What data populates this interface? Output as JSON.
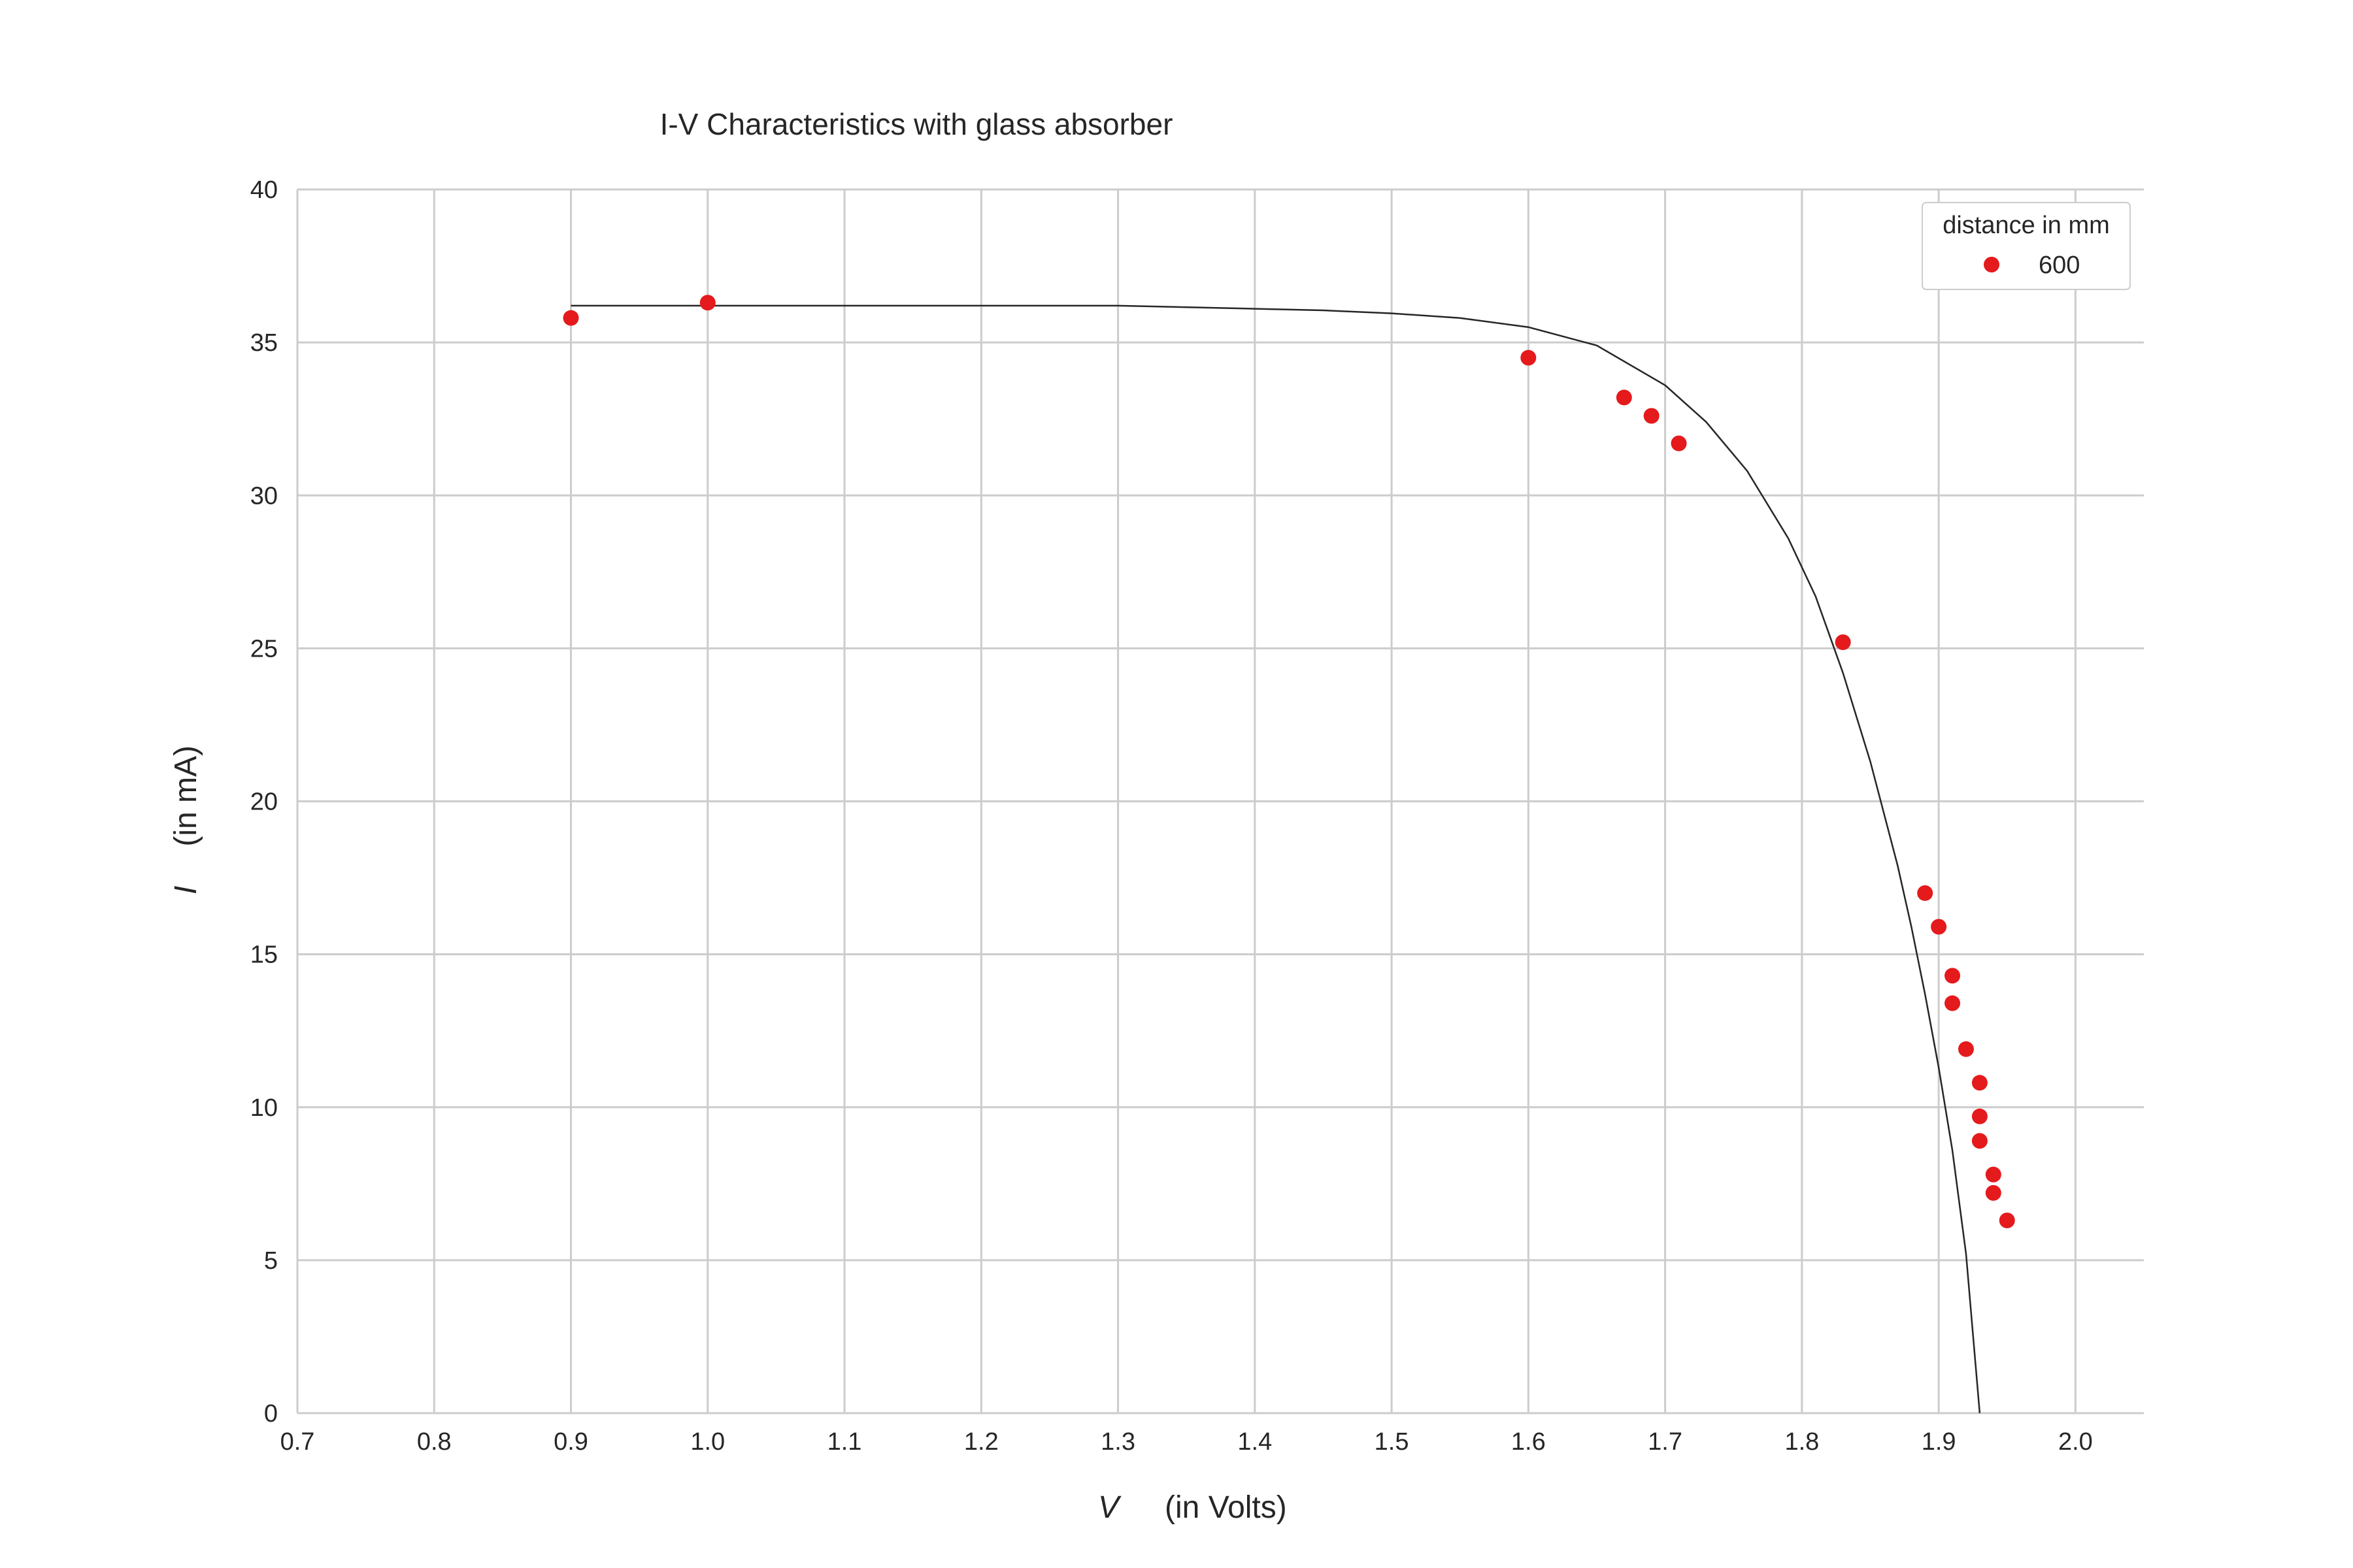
{
  "chart_data": {
    "type": "scatter",
    "title": "I-V Characteristics with glass absorber",
    "xlabel_var": "V",
    "xlabel_unit": "(in Volts)",
    "ylabel_var": "I",
    "ylabel_unit": "(in mA)",
    "xlim": [
      0.7,
      2.05
    ],
    "ylim": [
      0,
      40
    ],
    "xticks": [
      "0.7",
      "0.8",
      "0.9",
      "1.0",
      "1.1",
      "1.2",
      "1.3",
      "1.4",
      "1.5",
      "1.6",
      "1.7",
      "1.8",
      "1.9",
      "2.0"
    ],
    "yticks": [
      "0",
      "5",
      "10",
      "15",
      "20",
      "25",
      "30",
      "35",
      "40"
    ],
    "grid": true,
    "legend": {
      "title": "distance in mm",
      "placement": "top-right"
    },
    "series": [
      {
        "name": "600",
        "color": "#e41a1c",
        "x": [
          0.9,
          1.0,
          1.6,
          1.67,
          1.69,
          1.71,
          1.83,
          1.89,
          1.9,
          1.91,
          1.91,
          1.92,
          1.93,
          1.93,
          1.93,
          1.94,
          1.94,
          1.95
        ],
        "y": [
          35.8,
          36.3,
          34.5,
          33.2,
          32.6,
          31.7,
          25.2,
          17.0,
          15.9,
          14.3,
          13.4,
          11.9,
          10.8,
          9.7,
          8.9,
          7.8,
          7.2,
          6.3
        ]
      }
    ],
    "fit_curve": {
      "color": "#262626",
      "x": [
        0.9,
        1.0,
        1.1,
        1.2,
        1.3,
        1.4,
        1.45,
        1.5,
        1.55,
        1.6,
        1.65,
        1.7,
        1.73,
        1.76,
        1.79,
        1.81,
        1.83,
        1.85,
        1.87,
        1.88,
        1.89,
        1.9,
        1.91,
        1.92,
        1.93
      ],
      "y": [
        36.2,
        36.2,
        36.2,
        36.2,
        36.2,
        36.1,
        36.05,
        35.95,
        35.8,
        35.5,
        34.9,
        33.6,
        32.4,
        30.8,
        28.6,
        26.7,
        24.2,
        21.3,
        17.9,
        15.9,
        13.7,
        11.3,
        8.6,
        5.2,
        0.0
      ]
    }
  }
}
